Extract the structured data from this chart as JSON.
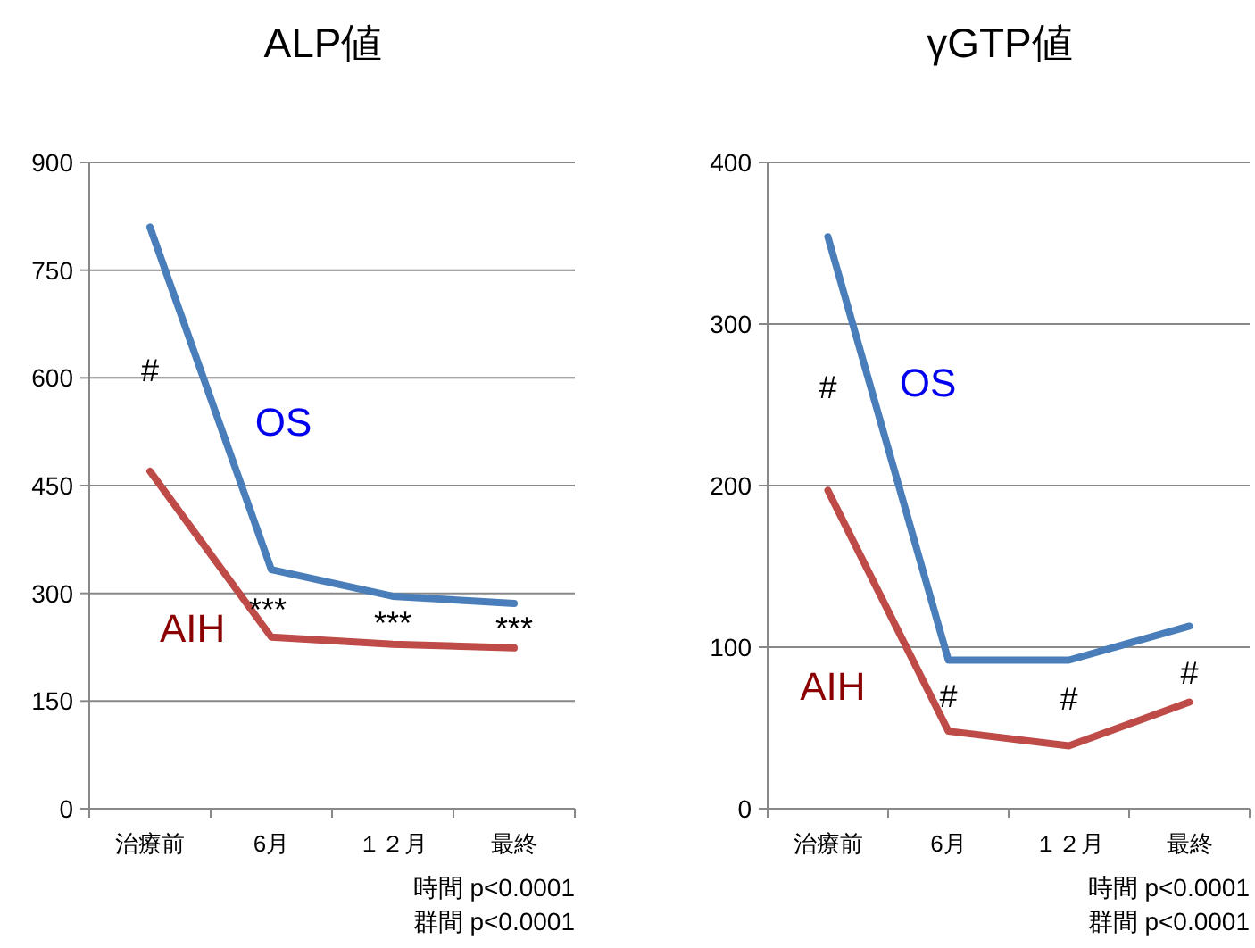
{
  "chart_data": [
    {
      "type": "line",
      "title": "ALP値",
      "categories": [
        "治療前",
        "6月",
        "１２月",
        "最終"
      ],
      "ylim": [
        0,
        900
      ],
      "yticks": [
        0,
        150,
        300,
        450,
        600,
        750,
        900
      ],
      "grid": "y",
      "series": [
        {
          "name": "OS",
          "color": "#4a7ebb",
          "values": [
            810,
            333,
            296,
            286
          ]
        },
        {
          "name": "AIH",
          "color": "#be4b48",
          "values": [
            470,
            239,
            229,
            224
          ]
        }
      ],
      "annotations": [
        "#",
        "***",
        "***",
        "***",
        "時間 p<0.0001",
        "群間 p<0.0001"
      ]
    },
    {
      "type": "line",
      "title": "γGTP値",
      "categories": [
        "治療前",
        "6月",
        "１２月",
        "最終"
      ],
      "ylim": [
        0,
        400
      ],
      "yticks": [
        0,
        100,
        200,
        300,
        400
      ],
      "grid": "y",
      "series": [
        {
          "name": "OS",
          "color": "#4a7ebb",
          "values": [
            354,
            92,
            92,
            113
          ]
        },
        {
          "name": "AIH",
          "color": "#be4b48",
          "values": [
            197,
            48,
            39,
            66
          ]
        }
      ],
      "annotations": [
        "#",
        "#",
        "#",
        "#",
        "時間 p<0.0001",
        "群間 p<0.0001"
      ]
    }
  ]
}
